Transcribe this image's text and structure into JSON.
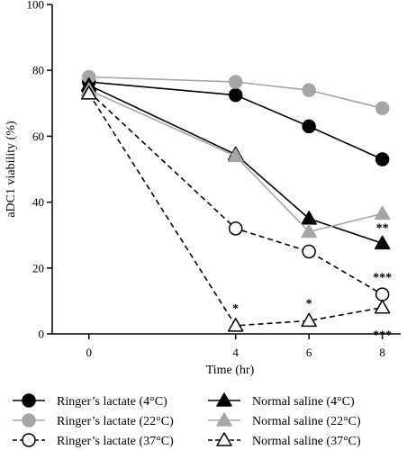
{
  "chart_data": {
    "type": "line",
    "xlabel": "Time (hr)",
    "ylabel": "aDC1 viability (%)",
    "x": [
      0,
      4,
      6,
      8
    ],
    "xticks": [
      "0",
      "4",
      "6",
      "8"
    ],
    "yticks": [
      "0",
      "20",
      "40",
      "60",
      "80",
      "100"
    ],
    "xlim": [
      -1,
      8.5
    ],
    "ylim": [
      0,
      100
    ],
    "series": [
      {
        "name": "Ringer’s lactate (4°C)",
        "values": [
          76.5,
          72.5,
          63,
          53
        ],
        "color": "#000000",
        "marker": "circle",
        "fill": "filled",
        "dash": false
      },
      {
        "name": "Ringer’s lactate (22°C)",
        "values": [
          78,
          76.5,
          74,
          68.5
        ],
        "color": "#a6a6a6",
        "marker": "circle",
        "fill": "filled",
        "dash": false
      },
      {
        "name": "Ringer’s lactate (37°C)",
        "values": [
          73.5,
          32,
          25,
          12
        ],
        "color": "#000000",
        "marker": "circle",
        "fill": "open",
        "dash": true
      },
      {
        "name": "Normal saline (4°C)",
        "values": [
          75.5,
          54.5,
          35,
          27.5
        ],
        "color": "#000000",
        "marker": "triangle",
        "fill": "filled",
        "dash": false
      },
      {
        "name": "Normal saline (22°C)",
        "values": [
          74,
          54,
          31,
          36.5
        ],
        "color": "#a6a6a6",
        "marker": "triangle",
        "fill": "filled",
        "dash": false
      },
      {
        "name": "Normal saline (37°C)",
        "values": [
          73,
          2.5,
          4,
          8
        ],
        "color": "#000000",
        "marker": "triangle",
        "fill": "open",
        "dash": true
      }
    ],
    "annotations": [
      {
        "text": "*",
        "x": 4,
        "y": 6.5
      },
      {
        "text": "*",
        "x": 6,
        "y": 8
      },
      {
        "text": "**",
        "x": 8,
        "y": 31
      },
      {
        "text": "***",
        "x": 8,
        "y": 16
      },
      {
        "text": "***",
        "x": 8,
        "y": -1.5
      }
    ],
    "legend_placement": "bottom"
  }
}
